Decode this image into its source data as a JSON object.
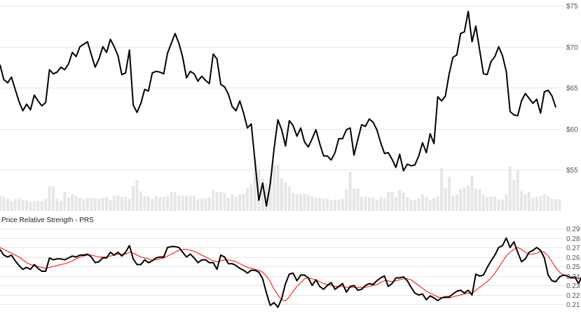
{
  "chart_data": [
    {
      "type": "line",
      "panel": "price",
      "title": "",
      "xlabel": "",
      "ylabel": "",
      "ylim": [
        50,
        75
      ],
      "y_ticks": [
        "$55",
        "$60",
        "$65",
        "$70",
        "$75"
      ],
      "y_tick_values": [
        55,
        60,
        65,
        70,
        75
      ],
      "grid": true,
      "colors": {
        "price": "#000000",
        "volume": "#e6e6e6"
      },
      "series": [
        {
          "values": [
            67.8,
            66.0,
            65.6,
            66.3,
            64.8,
            63.3,
            62.2,
            63.0,
            62.3,
            64.1,
            63.4,
            62.8,
            63.2,
            67.2,
            66.7,
            66.9,
            67.5,
            67.2,
            67.9,
            69.3,
            68.8,
            70.0,
            70.3,
            70.6,
            69.0,
            67.5,
            68.5,
            70.0,
            69.3,
            70.9,
            70.0,
            68.9,
            66.6,
            66.8,
            69.6,
            62.9,
            62.0,
            63.1,
            64.8,
            64.6,
            66.8,
            67.0,
            66.9,
            66.7,
            69.2,
            70.4,
            71.6,
            70.4,
            68.7,
            66.2,
            67.0,
            66.7,
            65.8,
            66.4,
            65.9,
            65.5,
            69.1,
            68.5,
            65.4,
            65.1,
            64.2,
            62.7,
            62.2,
            63.4,
            61.9,
            60.1,
            60.6,
            56.0,
            51.3,
            53.4,
            50.6,
            53.3,
            57.6,
            61.1,
            59.9,
            57.9,
            61.0,
            60.4,
            59.1,
            60.1,
            58.4,
            57.8,
            58.8,
            59.9,
            58.2,
            56.7,
            56.7,
            56.2,
            57.1,
            58.8,
            58.8,
            59.9,
            60.1,
            56.8,
            58.7,
            60.5,
            60.3,
            61.2,
            60.8,
            59.9,
            58.3,
            57.0,
            57.1,
            56.3,
            55.3,
            56.9,
            54.9,
            55.7,
            55.5,
            55.6,
            56.7,
            58.3,
            57.1,
            59.4,
            58.2,
            63.9,
            63.4,
            64.0,
            66.7,
            68.7,
            69.0,
            71.6,
            71.8,
            74.3,
            70.6,
            72.5,
            69.6,
            66.7,
            66.6,
            68.2,
            68.8,
            70.0,
            68.9,
            67.0,
            62.1,
            61.7,
            61.6,
            63.4,
            64.3,
            63.7,
            63.1,
            63.6,
            61.9,
            64.5,
            64.7,
            64.0,
            62.6
          ]
        }
      ],
      "volume": [
        0.27,
        0.24,
        0.22,
        0.18,
        0.21,
        0.22,
        0.2,
        0.19,
        0.17,
        0.17,
        0.18,
        0.17,
        0.21,
        0.44,
        0.44,
        0.22,
        0.18,
        0.34,
        0.24,
        0.3,
        0.27,
        0.24,
        0.21,
        0.24,
        0.24,
        0.22,
        0.22,
        0.24,
        0.25,
        0.19,
        0.27,
        0.28,
        0.25,
        0.25,
        0.22,
        0.45,
        0.55,
        0.35,
        0.26,
        0.26,
        0.21,
        0.27,
        0.25,
        0.25,
        0.27,
        0.34,
        0.34,
        0.28,
        0.27,
        0.27,
        0.27,
        0.27,
        0.21,
        0.22,
        0.23,
        0.25,
        0.38,
        0.34,
        0.34,
        0.32,
        0.24,
        0.3,
        0.25,
        0.3,
        0.3,
        0.41,
        0.47,
        0.96,
        0.74,
        0.58,
        0.49,
        0.61,
        0.81,
        0.83,
        0.58,
        0.51,
        0.44,
        0.32,
        0.3,
        0.3,
        0.3,
        0.28,
        0.26,
        0.24,
        0.24,
        0.22,
        0.22,
        0.19,
        0.2,
        0.2,
        0.22,
        0.38,
        0.7,
        0.4,
        0.4,
        0.25,
        0.25,
        0.24,
        0.24,
        0.2,
        0.25,
        0.23,
        0.34,
        0.34,
        0.25,
        0.38,
        0.33,
        0.25,
        0.2,
        0.2,
        0.23,
        0.3,
        0.25,
        0.2,
        0.24,
        0.26,
        0.77,
        0.41,
        0.61,
        0.27,
        0.3,
        0.39,
        0.42,
        0.45,
        0.63,
        0.4,
        0.39,
        0.3,
        0.25,
        0.25,
        0.25,
        0.2,
        0.21,
        0.3,
        0.8,
        0.56,
        0.73,
        0.35,
        0.3,
        0.34,
        0.23,
        0.25,
        0.26,
        0.3,
        0.26,
        0.22,
        0.21,
        0.21
      ]
    },
    {
      "type": "line",
      "panel": "indicator",
      "title": "Price Relative Strength - PRS",
      "xlabel": "",
      "ylabel": "",
      "ylim": [
        0.2,
        0.29
      ],
      "y_ticks": [
        "0.21",
        "0.22",
        "0.23",
        "0.24",
        "0.25",
        "0.26",
        "0.27",
        "0.28",
        "0.29"
      ],
      "y_tick_values": [
        0.21,
        0.22,
        0.23,
        0.24,
        0.25,
        0.26,
        0.27,
        0.28,
        0.29
      ],
      "grid": true,
      "colors": {
        "prs": "#000000",
        "signal": "#ff0000"
      },
      "series": [
        {
          "values": [
            0.268,
            0.262,
            0.26,
            0.262,
            0.256,
            0.251,
            0.247,
            0.249,
            0.247,
            0.252,
            0.248,
            0.245,
            0.245,
            0.259,
            0.257,
            0.258,
            0.258,
            0.257,
            0.259,
            0.261,
            0.26,
            0.262,
            0.262,
            0.263,
            0.26,
            0.254,
            0.255,
            0.259,
            0.259,
            0.265,
            0.262,
            0.265,
            0.261,
            0.265,
            0.272,
            0.258,
            0.252,
            0.252,
            0.257,
            0.254,
            0.256,
            0.259,
            0.26,
            0.26,
            0.27,
            0.271,
            0.271,
            0.27,
            0.265,
            0.26,
            0.263,
            0.259,
            0.254,
            0.257,
            0.257,
            0.254,
            0.254,
            0.247,
            0.262,
            0.26,
            0.253,
            0.253,
            0.251,
            0.248,
            0.246,
            0.243,
            0.246,
            0.246,
            0.244,
            0.237,
            0.222,
            0.209,
            0.212,
            0.207,
            0.216,
            0.232,
            0.242,
            0.243,
            0.235,
            0.241,
            0.241,
            0.238,
            0.23,
            0.236,
            0.229,
            0.226,
            0.23,
            0.233,
            0.226,
            0.229,
            0.232,
            0.223,
            0.229,
            0.23,
            0.225,
            0.226,
            0.23,
            0.232,
            0.231,
            0.235,
            0.238,
            0.24,
            0.229,
            0.232,
            0.238,
            0.238,
            0.239,
            0.235,
            0.228,
            0.222,
            0.22,
            0.221,
            0.215,
            0.219,
            0.217,
            0.214,
            0.217,
            0.218,
            0.218,
            0.221,
            0.224,
            0.225,
            0.222,
            0.225,
            0.22,
            0.242,
            0.24,
            0.241,
            0.249,
            0.256,
            0.262,
            0.27,
            0.272,
            0.28,
            0.27,
            0.276,
            0.265,
            0.255,
            0.258,
            0.265,
            0.267,
            0.27,
            0.267,
            0.259,
            0.241,
            0.235,
            0.234,
            0.239,
            0.241,
            0.24,
            0.238,
            0.239,
            0.232,
            0.241,
            0.241,
            0.238,
            0.235
          ]
        },
        {
          "values": [
            0.27,
            0.268,
            0.266,
            0.264,
            0.262,
            0.26,
            0.257,
            0.254,
            0.252,
            0.251,
            0.25,
            0.249,
            0.248,
            0.249,
            0.25,
            0.251,
            0.252,
            0.253,
            0.254,
            0.256,
            0.258,
            0.26,
            0.261,
            0.262,
            0.262,
            0.261,
            0.26,
            0.26,
            0.26,
            0.261,
            0.262,
            0.263,
            0.263,
            0.263,
            0.265,
            0.264,
            0.262,
            0.26,
            0.259,
            0.258,
            0.257,
            0.257,
            0.258,
            0.259,
            0.261,
            0.263,
            0.265,
            0.267,
            0.268,
            0.268,
            0.267,
            0.266,
            0.264,
            0.262,
            0.26,
            0.258,
            0.256,
            0.255,
            0.256,
            0.257,
            0.257,
            0.256,
            0.255,
            0.253,
            0.251,
            0.249,
            0.248,
            0.247,
            0.246,
            0.244,
            0.24,
            0.234,
            0.226,
            0.22,
            0.215,
            0.214,
            0.218,
            0.224,
            0.229,
            0.233,
            0.237,
            0.238,
            0.237,
            0.236,
            0.234,
            0.232,
            0.231,
            0.23,
            0.229,
            0.229,
            0.229,
            0.228,
            0.228,
            0.228,
            0.228,
            0.228,
            0.228,
            0.229,
            0.23,
            0.231,
            0.233,
            0.235,
            0.235,
            0.234,
            0.235,
            0.236,
            0.237,
            0.237,
            0.236,
            0.233,
            0.23,
            0.227,
            0.224,
            0.222,
            0.22,
            0.218,
            0.217,
            0.217,
            0.217,
            0.218,
            0.219,
            0.22,
            0.221,
            0.222,
            0.222,
            0.225,
            0.228,
            0.231,
            0.234,
            0.238,
            0.243,
            0.249,
            0.255,
            0.261,
            0.265,
            0.268,
            0.27,
            0.268,
            0.265,
            0.263,
            0.263,
            0.264,
            0.266,
            0.265,
            0.261,
            0.255,
            0.249,
            0.244,
            0.241,
            0.24,
            0.239,
            0.239,
            0.237,
            0.238,
            0.239,
            0.239,
            0.238
          ]
        }
      ]
    }
  ]
}
